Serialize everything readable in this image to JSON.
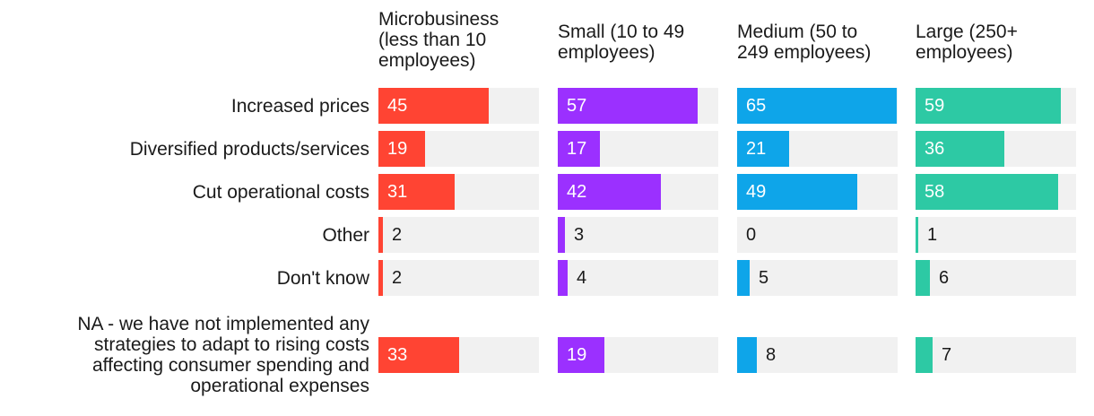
{
  "chart_data": {
    "type": "bar",
    "orientation": "horizontal",
    "layout": "small-multiples",
    "xlim": [
      0,
      65
    ],
    "grid": false,
    "legend": "none",
    "categories": [
      "Increased prices",
      "Diversified products/services",
      "Cut operational costs",
      "Other",
      "Don't know",
      "NA - we have not implemented any strategies to adapt to rising costs affecting consumer spending and operational expenses"
    ],
    "series": [
      {
        "name": "Microbusiness (less than 10 employees)",
        "color": "#ff4433",
        "values": [
          45,
          19,
          31,
          2,
          2,
          33
        ]
      },
      {
        "name": "Small (10 to 49 employees)",
        "color": "#9b30ff",
        "values": [
          57,
          17,
          42,
          3,
          4,
          19
        ]
      },
      {
        "name": "Medium (50 to 249 employees)",
        "color": "#0ea5e9",
        "values": [
          65,
          21,
          49,
          0,
          5,
          8
        ]
      },
      {
        "name": "Large (250+ employees)",
        "color": "#2dc9a4",
        "values": [
          59,
          36,
          58,
          1,
          6,
          7
        ]
      }
    ]
  }
}
